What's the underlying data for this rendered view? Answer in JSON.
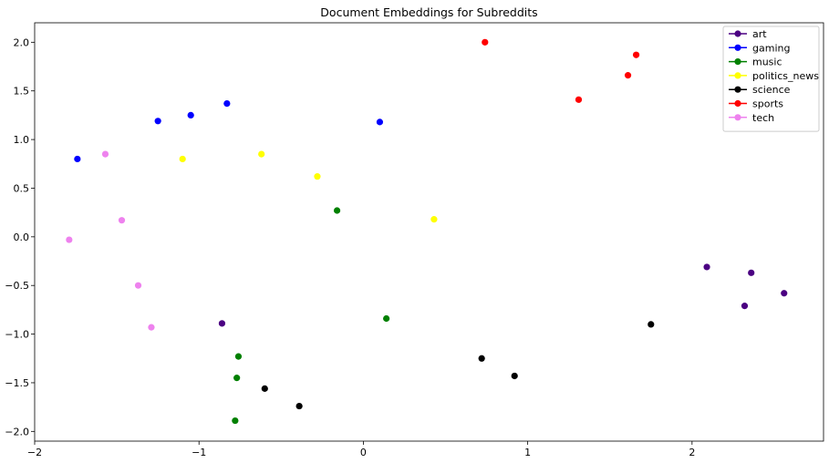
{
  "chart_data": {
    "type": "scatter",
    "title": "Document Embeddings for Subreddits",
    "xlabel": "",
    "ylabel": "",
    "xlim": [
      -2,
      2.8
    ],
    "ylim": [
      -2.1,
      2.2
    ],
    "xticks": [
      -2,
      -1,
      0,
      1,
      2
    ],
    "xtick_labels": [
      "−2",
      "−1",
      "0",
      "1",
      "2"
    ],
    "yticks": [
      -2.0,
      -1.5,
      -1.0,
      -0.5,
      0.0,
      0.5,
      1.0,
      1.5,
      2.0
    ],
    "ytick_labels": [
      "−2.0",
      "−1.5",
      "−1.0",
      "−0.5",
      "0.0",
      "0.5",
      "1.0",
      "1.5",
      "2.0"
    ],
    "grid": false,
    "legend_position": "top-right",
    "series": [
      {
        "name": "art",
        "color": "#4b0082",
        "points": [
          [
            -0.86,
            -0.89
          ],
          [
            2.09,
            -0.31
          ],
          [
            2.36,
            -0.37
          ],
          [
            2.32,
            -0.71
          ],
          [
            2.56,
            -0.58
          ]
        ]
      },
      {
        "name": "gaming",
        "color": "#0000ff",
        "points": [
          [
            -1.74,
            0.8
          ],
          [
            -1.25,
            1.19
          ],
          [
            -1.05,
            1.25
          ],
          [
            -0.83,
            1.37
          ],
          [
            0.1,
            1.18
          ]
        ]
      },
      {
        "name": "music",
        "color": "#008000",
        "points": [
          [
            -0.16,
            0.27
          ],
          [
            0.14,
            -0.84
          ],
          [
            -0.76,
            -1.23
          ],
          [
            -0.77,
            -1.45
          ],
          [
            -0.78,
            -1.89
          ]
        ]
      },
      {
        "name": "politics_news",
        "color": "#ffff00",
        "points": [
          [
            -1.1,
            0.8
          ],
          [
            -0.62,
            0.85
          ],
          [
            -0.28,
            0.62
          ],
          [
            0.43,
            0.18
          ]
        ]
      },
      {
        "name": "science",
        "color": "#000000",
        "points": [
          [
            -0.6,
            -1.56
          ],
          [
            -0.39,
            -1.74
          ],
          [
            0.72,
            -1.25
          ],
          [
            0.92,
            -1.43
          ],
          [
            1.75,
            -0.9
          ]
        ]
      },
      {
        "name": "sports",
        "color": "#ff0000",
        "points": [
          [
            0.74,
            2.0
          ],
          [
            1.31,
            1.41
          ],
          [
            1.61,
            1.66
          ],
          [
            1.66,
            1.87
          ]
        ]
      },
      {
        "name": "tech",
        "color": "#ee82ee",
        "points": [
          [
            -1.57,
            0.85
          ],
          [
            -1.47,
            0.17
          ],
          [
            -1.79,
            -0.03
          ],
          [
            -1.37,
            -0.5
          ],
          [
            -1.29,
            -0.93
          ]
        ]
      }
    ]
  }
}
